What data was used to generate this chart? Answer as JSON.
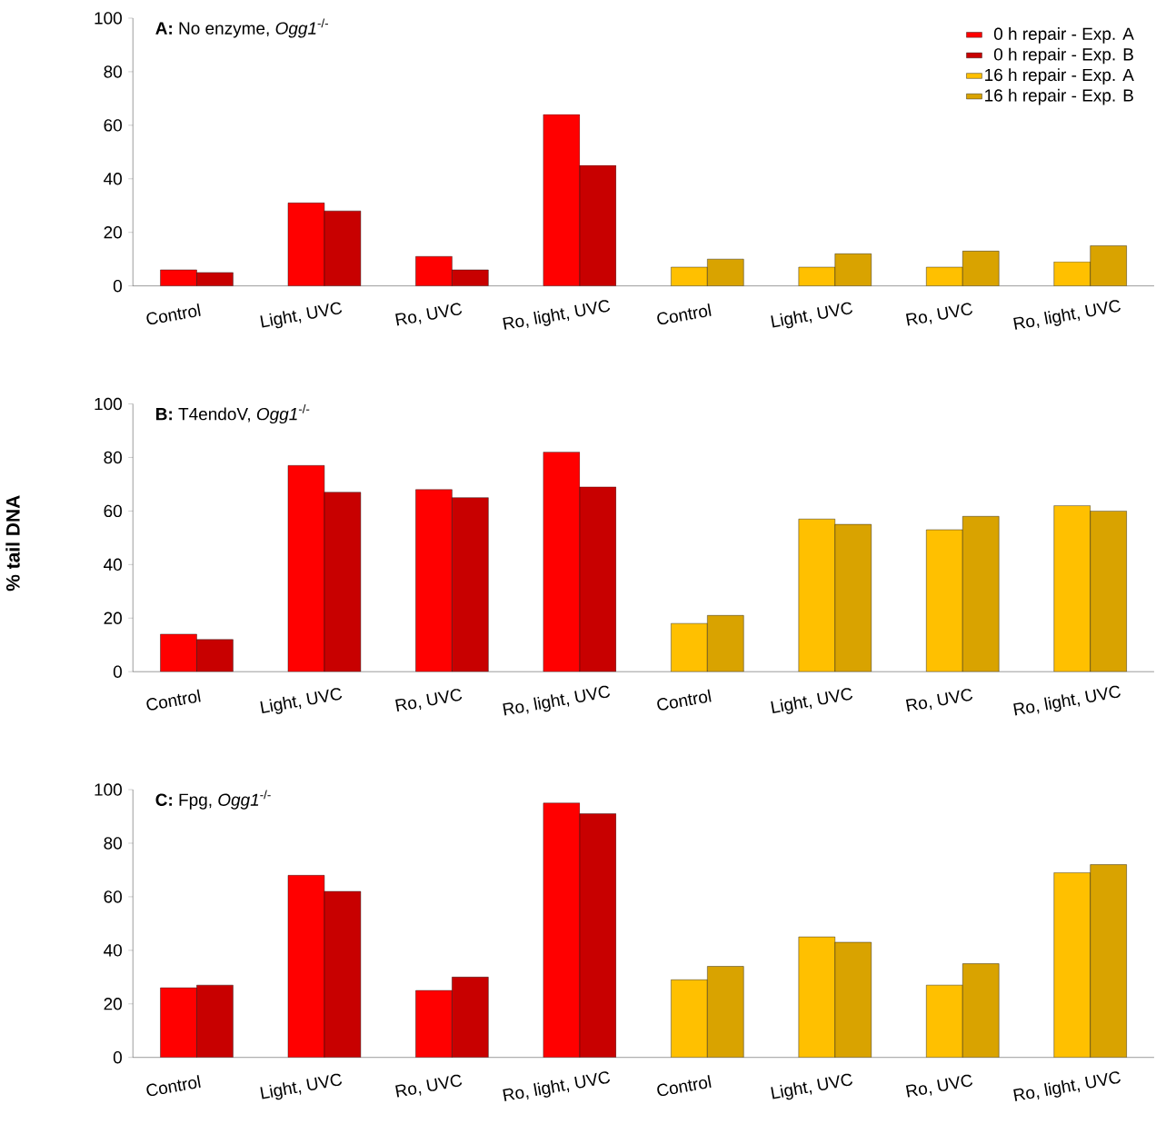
{
  "chart_data": [
    {
      "type": "bar",
      "title": "**A:** No enzyme, *Ogg1*$^{-/-}$",
      "categories": [
        "Control",
        "Light, UVC",
        "Ro, UVC",
        "Ro, light, UVC",
        "Control",
        "Light, UVC",
        "Ro, UVC",
        "Ro, light, UVC"
      ],
      "ylim": [
        0,
        100
      ],
      "yticks": [
        0,
        20,
        40,
        60,
        80,
        100
      ],
      "legend": "top right",
      "series": [
        {
          "name": "0 h repair - Exp. A",
          "color": "#ff0000",
          "values": [
            6,
            31,
            11,
            64,
            null,
            null,
            null,
            null
          ]
        },
        {
          "name": "0 h repair - Exp. B",
          "color": "#c80000",
          "values": [
            5,
            28,
            6,
            45,
            null,
            null,
            null,
            null
          ]
        },
        {
          "name": "16 h repair - Exp. A",
          "color": "#ffc000",
          "values": [
            null,
            null,
            null,
            null,
            7,
            7,
            7,
            9
          ]
        },
        {
          "name": "16 h repair - Exp. B",
          "color": "#d9a300",
          "values": [
            null,
            null,
            null,
            null,
            10,
            12,
            13,
            15
          ]
        }
      ]
    },
    {
      "type": "bar",
      "title": "**B:** T4endoV, *Ogg1*$^{-/-}$",
      "ylabel": "% tail DNA",
      "categories": [
        "Control",
        "Light, UVC",
        "Ro, UVC",
        "Ro, light, UVC",
        "Control",
        "Light, UVC",
        "Ro, UVC",
        "Ro, light, UVC"
      ],
      "ylim": [
        0,
        100
      ],
      "yticks": [
        0,
        20,
        40,
        60,
        80,
        100
      ],
      "series": [
        {
          "color": "#ff0000",
          "values": [
            14,
            77,
            68,
            82,
            null,
            null,
            null,
            null
          ]
        },
        {
          "color": "#c80000",
          "values": [
            12,
            67,
            65,
            69,
            null,
            null,
            null,
            null
          ]
        },
        {
          "color": "#ffc000",
          "values": [
            null,
            null,
            null,
            null,
            18,
            57,
            53,
            62
          ]
        },
        {
          "color": "#d9a300",
          "values": [
            null,
            null,
            null,
            null,
            21,
            55,
            58,
            60
          ]
        }
      ]
    },
    {
      "type": "bar",
      "title": "**C:** Fpg, *Ogg1*$^{-/-}$",
      "categories": [
        "Control",
        "Light, UVC",
        "Ro, UVC",
        "Ro, light, UVC",
        "Control",
        "Light, UVC",
        "Ro, UVC",
        "Ro, light, UVC"
      ],
      "ylim": [
        0,
        100
      ],
      "yticks": [
        0,
        20,
        40,
        60,
        80,
        100
      ],
      "series": [
        {
          "color": "#ff0000",
          "values": [
            26,
            68,
            25,
            95,
            null,
            null,
            null,
            null
          ]
        },
        {
          "color": "#c80000",
          "values": [
            27,
            62,
            30,
            91,
            null,
            null,
            null,
            null
          ]
        },
        {
          "color": "#ffc000",
          "values": [
            null,
            null,
            null,
            null,
            29,
            45,
            27,
            69
          ]
        },
        {
          "color": "#d9a300",
          "values": [
            null,
            null,
            null,
            null,
            34,
            43,
            35,
            72
          ]
        }
      ]
    }
  ]
}
